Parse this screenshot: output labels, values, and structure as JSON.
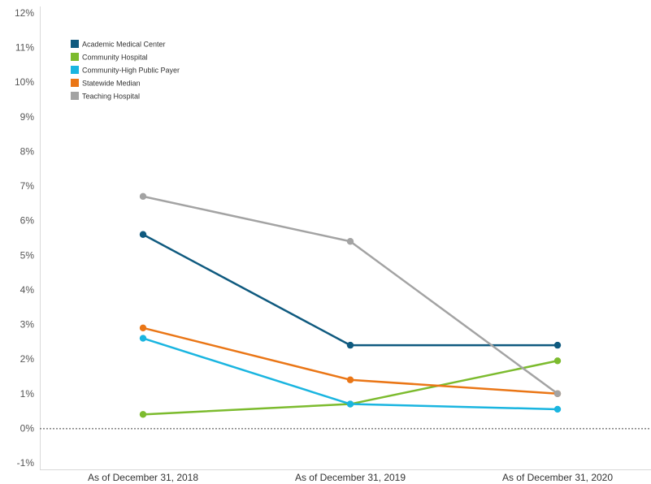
{
  "chart_data": {
    "type": "line",
    "title": "",
    "xlabel": "",
    "ylabel": "",
    "categories": [
      "As of December 31, 2018",
      "As of December 31, 2019",
      "As of December 31, 2020"
    ],
    "ylim": [
      -1,
      12
    ],
    "yticks": [
      -1,
      0,
      1,
      2,
      3,
      4,
      5,
      6,
      7,
      8,
      9,
      10,
      11,
      12
    ],
    "ytick_labels": [
      "-1%",
      "0%",
      "1%",
      "2%",
      "3%",
      "4%",
      "5%",
      "6%",
      "7%",
      "8%",
      "9%",
      "10%",
      "11%",
      "12%"
    ],
    "zero_line": "dashed",
    "grid": false,
    "legend_position": "top-left",
    "series": [
      {
        "name": "Academic Medical Center",
        "color": "#0f5a7f",
        "values": [
          5.6,
          2.4,
          2.4
        ]
      },
      {
        "name": "Community Hospital",
        "color": "#7cbb2e",
        "values": [
          0.4,
          0.7,
          1.95
        ]
      },
      {
        "name": "Community-High Public Payer",
        "color": "#1ab5e0",
        "values": [
          2.6,
          0.7,
          0.55
        ]
      },
      {
        "name": "Statewide Median",
        "color": "#ea7616",
        "values": [
          2.9,
          1.4,
          1.0
        ]
      },
      {
        "name": "Teaching Hospital",
        "color": "#a3a3a3",
        "values": [
          6.7,
          5.4,
          1.0
        ]
      }
    ]
  }
}
